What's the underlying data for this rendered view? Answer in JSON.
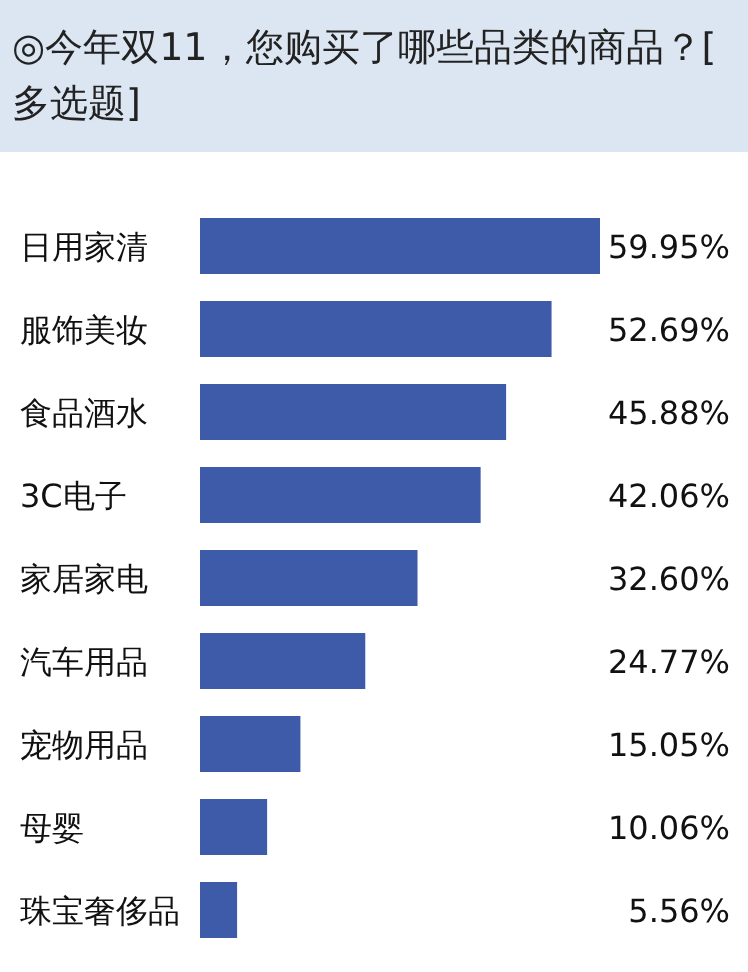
{
  "chart_data": {
    "type": "bar",
    "orientation": "horizontal",
    "title": "◎今年双11，您购买了哪些品类的商品？[多选题]",
    "categories": [
      "日用家清",
      "服饰美妆",
      "食品酒水",
      "3C电子",
      "家居家电",
      "汽车用品",
      "宠物用品",
      "母婴",
      "珠宝奢侈品"
    ],
    "values": [
      59.95,
      52.69,
      45.88,
      42.06,
      32.6,
      24.77,
      15.05,
      10.06,
      5.56
    ],
    "value_labels": [
      "59.95%",
      "52.69%",
      "45.88%",
      "42.06%",
      "32.60%",
      "24.77%",
      "15.05%",
      "10.06%",
      "5.56%"
    ],
    "color": "#3d5ba8"
  }
}
